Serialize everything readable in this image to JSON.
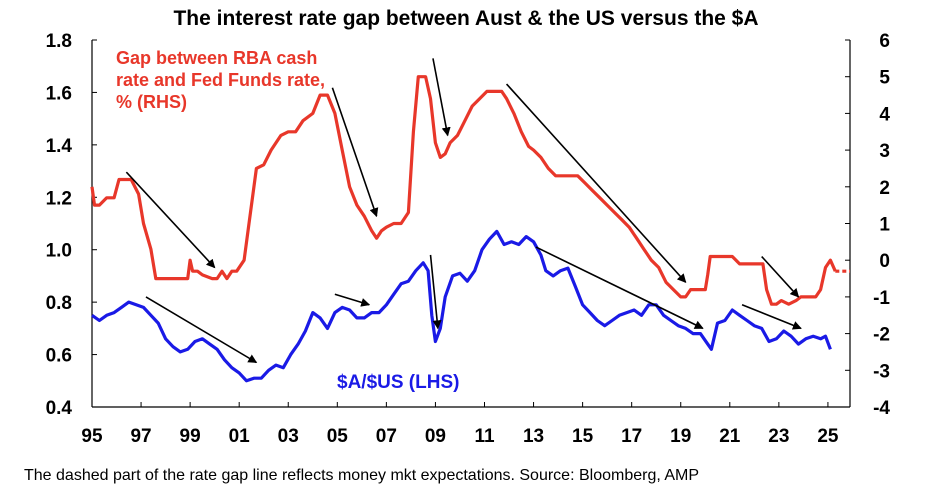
{
  "chart_data": {
    "type": "line",
    "title": "The interest rate gap between Aust & the US versus the $A",
    "footnote": "The dashed part of the rate gap line reflects money mkt expectations. Source: Bloomberg, AMP",
    "x_tick_labels": [
      "95",
      "97",
      "99",
      "01",
      "03",
      "05",
      "07",
      "09",
      "11",
      "13",
      "15",
      "17",
      "19",
      "21",
      "23",
      "25"
    ],
    "x_tick_values": [
      1995,
      1997,
      1999,
      2001,
      2003,
      2005,
      2007,
      2009,
      2011,
      2013,
      2015,
      2017,
      2019,
      2021,
      2023,
      2025
    ],
    "xlim": [
      1995,
      2025.9
    ],
    "y_left": {
      "lim": [
        0.4,
        1.8
      ],
      "ticks": [
        0.4,
        0.6,
        0.8,
        1.0,
        1.2,
        1.4,
        1.6,
        1.8
      ],
      "labels": [
        "0.4",
        "0.6",
        "0.8",
        "1.0",
        "1.2",
        "1.4",
        "1.6",
        "1.8"
      ]
    },
    "y_right": {
      "lim": [
        -4,
        6
      ],
      "ticks": [
        -4,
        -3,
        -2,
        -1,
        0,
        1,
        2,
        3,
        4,
        5,
        6
      ],
      "labels": [
        "-4",
        "-3",
        "-2",
        "-1",
        "0",
        "1",
        "2",
        "3",
        "4",
        "5",
        "6"
      ]
    },
    "grid": false,
    "colors": {
      "rate_gap": "#e8372a",
      "aud_usd": "#1a1ae6",
      "arrow": "#000000"
    },
    "series": [
      {
        "name": "Gap between RBA cash rate and Fed Funds rate, % (RHS)",
        "label_lines": [
          "Gap between RBA cash",
          "rate and Fed Funds rate,",
          "% (RHS)"
        ],
        "axis": "right",
        "x": [
          1995.0,
          1995.1,
          1995.3,
          1995.6,
          1995.9,
          1996.1,
          1996.4,
          1996.6,
          1996.9,
          1997.1,
          1997.4,
          1997.6,
          1997.9,
          1998.0,
          1998.3,
          1998.6,
          1998.9,
          1999.0,
          1999.1,
          1999.3,
          1999.5,
          1999.9,
          2000.1,
          2000.3,
          2000.5,
          2000.7,
          2000.9,
          2001.2,
          2001.4,
          2001.7,
          2002.0,
          2002.3,
          2002.7,
          2003.0,
          2003.3,
          2003.6,
          2004.0,
          2004.3,
          2004.6,
          2004.9,
          2005.2,
          2005.5,
          2005.8,
          2006.1,
          2006.4,
          2006.6,
          2006.8,
          2007.0,
          2007.3,
          2007.6,
          2007.9,
          2008.1,
          2008.3,
          2008.6,
          2008.8,
          2009.0,
          2009.2,
          2009.4,
          2009.6,
          2009.9,
          2010.2,
          2010.5,
          2010.8,
          2011.1,
          2011.4,
          2011.7,
          2011.9,
          2012.2,
          2012.5,
          2012.8,
          2013.0,
          2013.3,
          2013.6,
          2013.9,
          2014.2,
          2014.5,
          2014.8,
          2015.1,
          2015.4,
          2015.7,
          2016.0,
          2016.3,
          2016.6,
          2016.9,
          2017.2,
          2017.5,
          2017.8,
          2018.1,
          2018.4,
          2018.7,
          2019.0,
          2019.2,
          2019.4,
          2019.6,
          2019.8,
          2020.0,
          2020.1,
          2020.2,
          2020.5,
          2020.8,
          2021.1,
          2021.4,
          2021.7,
          2022.0,
          2022.2,
          2022.35,
          2022.5,
          2022.7,
          2022.9,
          2023.1,
          2023.4,
          2023.7,
          2023.9,
          2024.2,
          2024.5,
          2024.7,
          2024.9,
          2025.1,
          2025.3
        ],
        "values": [
          2.0,
          1.5,
          1.5,
          1.7,
          1.7,
          2.2,
          2.2,
          2.2,
          1.8,
          1.0,
          0.3,
          -0.5,
          -0.5,
          -0.5,
          -0.5,
          -0.5,
          -0.5,
          0.0,
          -0.3,
          -0.3,
          -0.4,
          -0.5,
          -0.5,
          -0.3,
          -0.5,
          -0.3,
          -0.3,
          0.0,
          1.0,
          2.5,
          2.6,
          3.0,
          3.4,
          3.5,
          3.5,
          3.8,
          4.0,
          4.5,
          4.5,
          4.0,
          3.0,
          2.0,
          1.5,
          1.2,
          0.8,
          0.6,
          0.8,
          0.9,
          1.0,
          1.0,
          1.3,
          3.5,
          5.0,
          5.0,
          4.4,
          3.2,
          2.8,
          2.9,
          3.2,
          3.4,
          3.8,
          4.2,
          4.4,
          4.6,
          4.6,
          4.6,
          4.4,
          4.0,
          3.5,
          3.1,
          3.0,
          2.8,
          2.5,
          2.3,
          2.3,
          2.3,
          2.3,
          2.1,
          1.9,
          1.7,
          1.5,
          1.3,
          1.1,
          0.9,
          0.6,
          0.3,
          0.0,
          -0.2,
          -0.6,
          -0.8,
          -1.0,
          -1.0,
          -0.8,
          -0.8,
          -0.8,
          -0.8,
          -0.4,
          0.1,
          0.1,
          0.1,
          0.1,
          -0.1,
          -0.1,
          -0.1,
          -0.1,
          -0.1,
          -0.8,
          -1.2,
          -1.2,
          -1.1,
          -1.2,
          -1.1,
          -1.0,
          -1.0,
          -1.0,
          -0.8,
          -0.2,
          0.0,
          -0.3
        ]
      },
      {
        "name": "Rate gap money market expectations",
        "axis": "right",
        "dashed": true,
        "x": [
          2025.3,
          2025.5,
          2025.7,
          2025.9
        ],
        "values": [
          -0.3,
          -0.3,
          -0.3,
          -0.3
        ]
      },
      {
        "name": "$A/$US (LHS)",
        "axis": "left",
        "x": [
          1995.0,
          1995.3,
          1995.6,
          1995.9,
          1996.2,
          1996.5,
          1996.8,
          1997.1,
          1997.4,
          1997.7,
          1998.0,
          1998.3,
          1998.6,
          1998.9,
          1999.2,
          1999.5,
          1999.8,
          2000.1,
          2000.4,
          2000.7,
          2001.0,
          2001.3,
          2001.6,
          2001.9,
          2002.2,
          2002.5,
          2002.8,
          2003.1,
          2003.4,
          2003.7,
          2004.0,
          2004.3,
          2004.6,
          2004.9,
          2005.2,
          2005.5,
          2005.8,
          2006.1,
          2006.4,
          2006.7,
          2007.0,
          2007.3,
          2007.6,
          2007.9,
          2008.2,
          2008.5,
          2008.7,
          2008.85,
          2009.0,
          2009.2,
          2009.4,
          2009.7,
          2010.0,
          2010.3,
          2010.6,
          2010.9,
          2011.2,
          2011.5,
          2011.8,
          2012.1,
          2012.4,
          2012.7,
          2013.0,
          2013.3,
          2013.5,
          2013.8,
          2014.1,
          2014.4,
          2014.7,
          2015.0,
          2015.3,
          2015.6,
          2015.9,
          2016.2,
          2016.5,
          2016.8,
          2017.1,
          2017.4,
          2017.7,
          2018.0,
          2018.3,
          2018.6,
          2018.9,
          2019.2,
          2019.5,
          2019.8,
          2020.1,
          2020.25,
          2020.5,
          2020.8,
          2021.1,
          2021.4,
          2021.7,
          2022.0,
          2022.3,
          2022.6,
          2022.9,
          2023.2,
          2023.5,
          2023.8,
          2024.1,
          2024.4,
          2024.7,
          2024.9,
          2025.1
        ],
        "values": [
          0.75,
          0.73,
          0.75,
          0.76,
          0.78,
          0.8,
          0.79,
          0.78,
          0.75,
          0.72,
          0.66,
          0.63,
          0.61,
          0.62,
          0.65,
          0.66,
          0.64,
          0.62,
          0.58,
          0.55,
          0.53,
          0.5,
          0.51,
          0.51,
          0.54,
          0.56,
          0.55,
          0.6,
          0.64,
          0.69,
          0.76,
          0.74,
          0.7,
          0.76,
          0.78,
          0.77,
          0.74,
          0.74,
          0.76,
          0.76,
          0.79,
          0.83,
          0.87,
          0.88,
          0.92,
          0.95,
          0.92,
          0.75,
          0.65,
          0.7,
          0.82,
          0.9,
          0.91,
          0.88,
          0.92,
          1.0,
          1.04,
          1.07,
          1.02,
          1.03,
          1.02,
          1.05,
          1.03,
          0.98,
          0.92,
          0.9,
          0.92,
          0.93,
          0.86,
          0.79,
          0.76,
          0.73,
          0.71,
          0.73,
          0.75,
          0.76,
          0.77,
          0.75,
          0.79,
          0.79,
          0.75,
          0.73,
          0.71,
          0.7,
          0.68,
          0.68,
          0.64,
          0.62,
          0.72,
          0.73,
          0.77,
          0.75,
          0.73,
          0.71,
          0.7,
          0.65,
          0.66,
          0.69,
          0.67,
          0.64,
          0.66,
          0.67,
          0.66,
          0.67,
          0.62
        ]
      }
    ],
    "annotations": [
      {
        "text": "$A/$US (LHS)",
        "series": "$A/$US (LHS)"
      }
    ],
    "arrows": [
      {
        "axis": "right",
        "from": [
          1996.4,
          2.4
        ],
        "to": [
          2000.0,
          -0.2
        ]
      },
      {
        "axis": "left",
        "from": [
          1997.2,
          0.82
        ],
        "to": [
          2001.7,
          0.57
        ]
      },
      {
        "axis": "right",
        "from": [
          2004.8,
          4.7
        ],
        "to": [
          2006.6,
          1.2
        ]
      },
      {
        "axis": "left",
        "from": [
          2004.9,
          0.83
        ],
        "to": [
          2006.3,
          0.79
        ]
      },
      {
        "axis": "right",
        "from": [
          2008.9,
          5.5
        ],
        "to": [
          2009.5,
          3.4
        ]
      },
      {
        "axis": "left",
        "from": [
          2008.8,
          0.98
        ],
        "to": [
          2009.1,
          0.7
        ]
      },
      {
        "axis": "right",
        "from": [
          2011.9,
          4.8
        ],
        "to": [
          2019.2,
          -0.6
        ]
      },
      {
        "axis": "left",
        "from": [
          2013.1,
          1.01
        ],
        "to": [
          2019.9,
          0.7
        ]
      },
      {
        "axis": "right",
        "from": [
          2022.3,
          0.1
        ],
        "to": [
          2023.8,
          -1.0
        ]
      },
      {
        "axis": "left",
        "from": [
          2021.5,
          0.79
        ],
        "to": [
          2023.9,
          0.7
        ]
      }
    ]
  }
}
